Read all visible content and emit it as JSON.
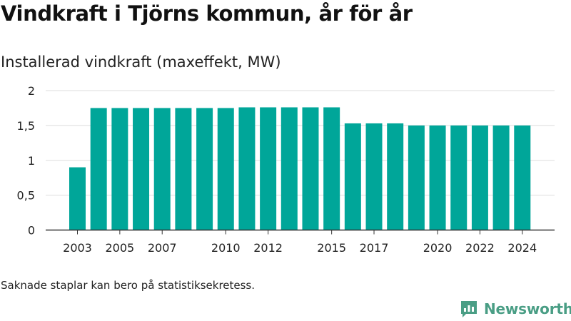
{
  "title": "Vindkraft i Tjörns kommun, år för år",
  "subtitle": "Installerad vindkraft (maxeffekt, MW)",
  "footnote": "Saknade staplar kan bero på statistiksekretess.",
  "brand": {
    "name": "Newsworthy",
    "icon": "newsworthy-chart-bubble-icon",
    "color": "#4a9e85"
  },
  "chart_data": {
    "type": "bar",
    "title": "Installerad vindkraft (maxeffekt, MW)",
    "xlabel": "",
    "ylabel": "",
    "bar_color": "#00a699",
    "categories": [
      "2003",
      "2004",
      "2005",
      "2006",
      "2007",
      "2008",
      "2009",
      "2010",
      "2011",
      "2012",
      "2013",
      "2014",
      "2015",
      "2016",
      "2017",
      "2018",
      "2019",
      "2020",
      "2021",
      "2022",
      "2023",
      "2024"
    ],
    "values": [
      0.9,
      1.75,
      1.75,
      1.75,
      1.75,
      1.75,
      1.75,
      1.75,
      1.76,
      1.76,
      1.76,
      1.76,
      1.76,
      1.53,
      1.53,
      1.53,
      1.5,
      1.5,
      1.5,
      1.5,
      1.5,
      1.5
    ],
    "x_tick_labels": [
      "2003",
      "2005",
      "2007",
      "2010",
      "2012",
      "2015",
      "2017",
      "2020",
      "2022",
      "2024"
    ],
    "y_ticks": [
      0,
      0.5,
      1,
      1.5,
      2
    ],
    "y_tick_labels": [
      "0",
      "0,5",
      "1",
      "1,5",
      "2"
    ],
    "ylim": [
      0,
      2
    ],
    "grid": true,
    "legend": "none"
  }
}
